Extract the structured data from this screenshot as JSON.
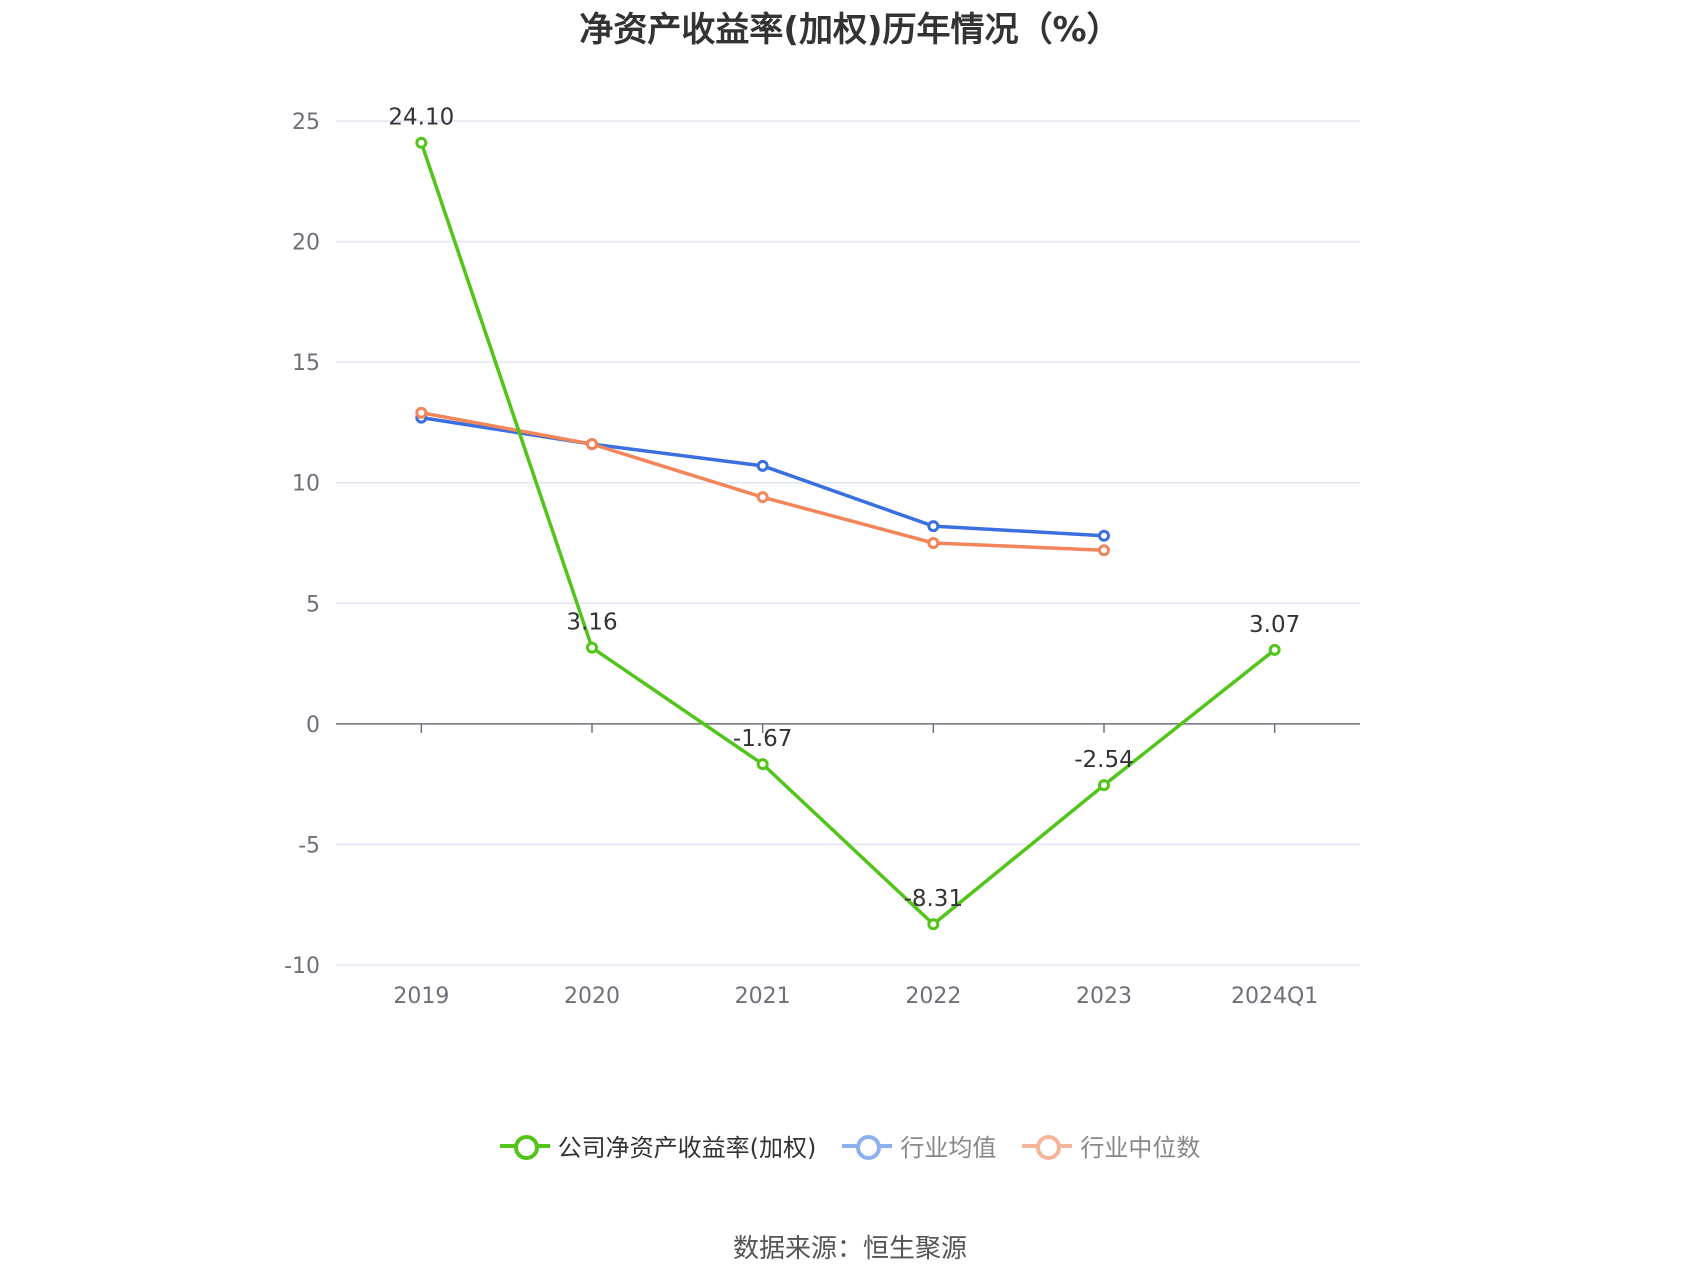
{
  "chart_data": {
    "type": "line",
    "title": "净资产收益率(加权)历年情况（%）",
    "categories": [
      "2019",
      "2020",
      "2021",
      "2022",
      "2023",
      "2024Q1"
    ],
    "y_ticks": [
      25,
      20,
      15,
      10,
      5,
      0,
      -5,
      -10
    ],
    "ylim": [
      -10,
      25
    ],
    "grid": true,
    "legend_position": "bottom",
    "series": [
      {
        "name": "公司净资产收益率(加权)",
        "color": "#52c41a",
        "values": [
          24.1,
          3.16,
          -1.67,
          -8.31,
          -2.54,
          3.07
        ],
        "labels": [
          "24.10",
          "3.16",
          "-1.67",
          "-8.31",
          "-2.54",
          "3.07"
        ]
      },
      {
        "name": "行业均值",
        "color": "#3a6fe0",
        "values": [
          12.7,
          11.6,
          10.7,
          8.2,
          7.8,
          null
        ]
      },
      {
        "name": "行业中位数",
        "color": "#f28559",
        "values": [
          12.9,
          11.6,
          9.4,
          7.5,
          7.2,
          null
        ]
      }
    ]
  },
  "legend": {
    "items": [
      {
        "label": "公司净资产收益率(加权)",
        "color": "#52c41a",
        "text_color": "#333333"
      },
      {
        "label": "行业均值",
        "color": "#8fb0ee",
        "text_color": "#888888"
      },
      {
        "label": "行业中位数",
        "color": "#f5b59b",
        "text_color": "#888888"
      }
    ]
  },
  "source": "数据来源：恒生聚源"
}
